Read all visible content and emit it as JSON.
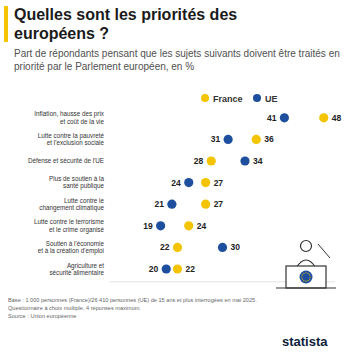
{
  "chart_data": {
    "type": "dot",
    "title": "Quelles sont les priorités des européens ?",
    "subtitle": "Part de répondants pensant que les sujets suivants doivent être traités en priorité par le Parlement européen, en %",
    "orientation": "horizontal",
    "categories": [
      "Inflation, hausse des prix\net coût de la vie",
      "Lutte contre la pauvreté\net l'exclusion sociale",
      "Défense et sécurité de l'UE",
      "Plus de soutien à la\nsanté publique",
      "Lutte contre le\nchangement climatique",
      "Lutte contre le terrorisme\net le crime organisé",
      "Soutien à l'économie\net à la création d'emploi",
      "Agriculture et\nsécurité alimentaire"
    ],
    "series": [
      {
        "name": "France",
        "color": "#f5c400",
        "values": [
          48,
          36,
          28,
          27,
          27,
          24,
          22,
          22
        ]
      },
      {
        "name": "UE",
        "color": "#1d4f9e",
        "values": [
          41,
          31,
          34,
          24,
          21,
          19,
          30,
          20
        ]
      }
    ],
    "xlim": [
      10,
      50
    ],
    "xticks": [],
    "tick_labels": false,
    "data_labels": true,
    "legend": "top",
    "notes": [
      "Base : 1 000 personnes (France)/26 410 personnes (UE) de 15 ans et plus interrogées en mai 2025.",
      "Questionnaire à choix multiple, 4 réponses maximum.",
      "Source : Union européenne"
    ],
    "credit": "statista"
  }
}
